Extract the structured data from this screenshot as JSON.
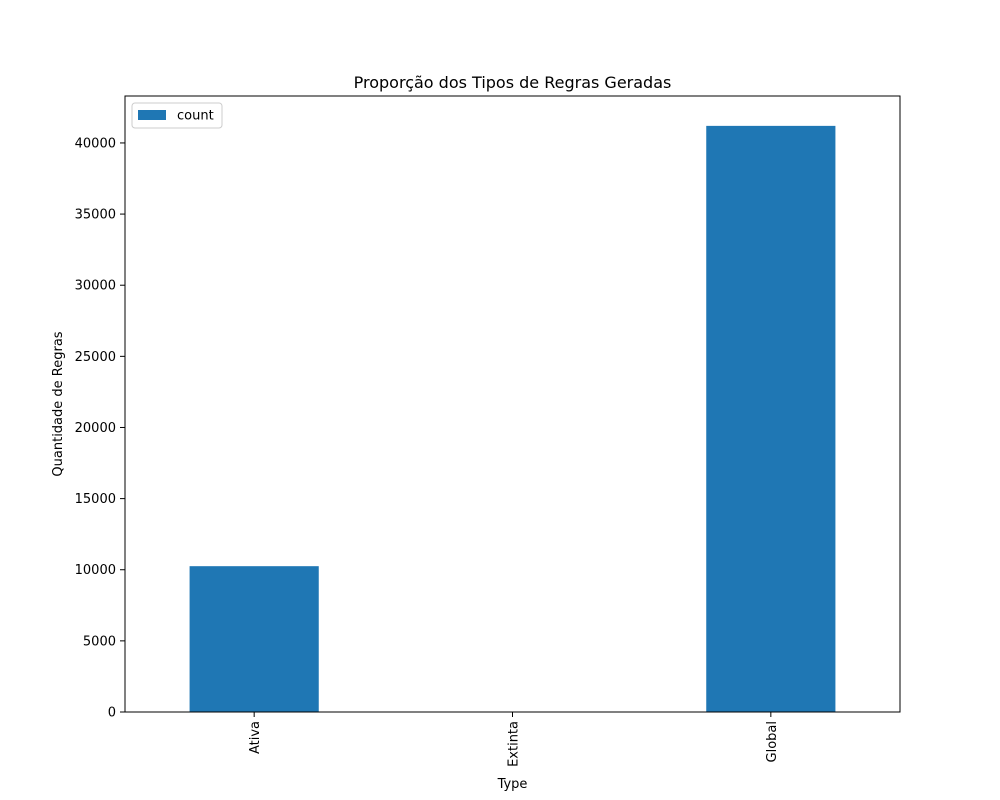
{
  "chart_data": {
    "type": "bar",
    "title": "Proporção dos Tipos de Regras Geradas",
    "xlabel": "Type",
    "ylabel": "Quantidade de Regras",
    "categories": [
      "Ativa",
      "Extinta",
      "Global"
    ],
    "series": [
      {
        "name": "count",
        "values": [
          10250,
          0,
          41200
        ]
      }
    ],
    "ylim": [
      0,
      43300
    ],
    "yticks": [
      0,
      5000,
      10000,
      15000,
      20000,
      25000,
      30000,
      35000,
      40000
    ],
    "grid": false,
    "legend_position": "top-left",
    "x_tick_rotation": "vertical",
    "bar_color": "#1f77b4"
  }
}
